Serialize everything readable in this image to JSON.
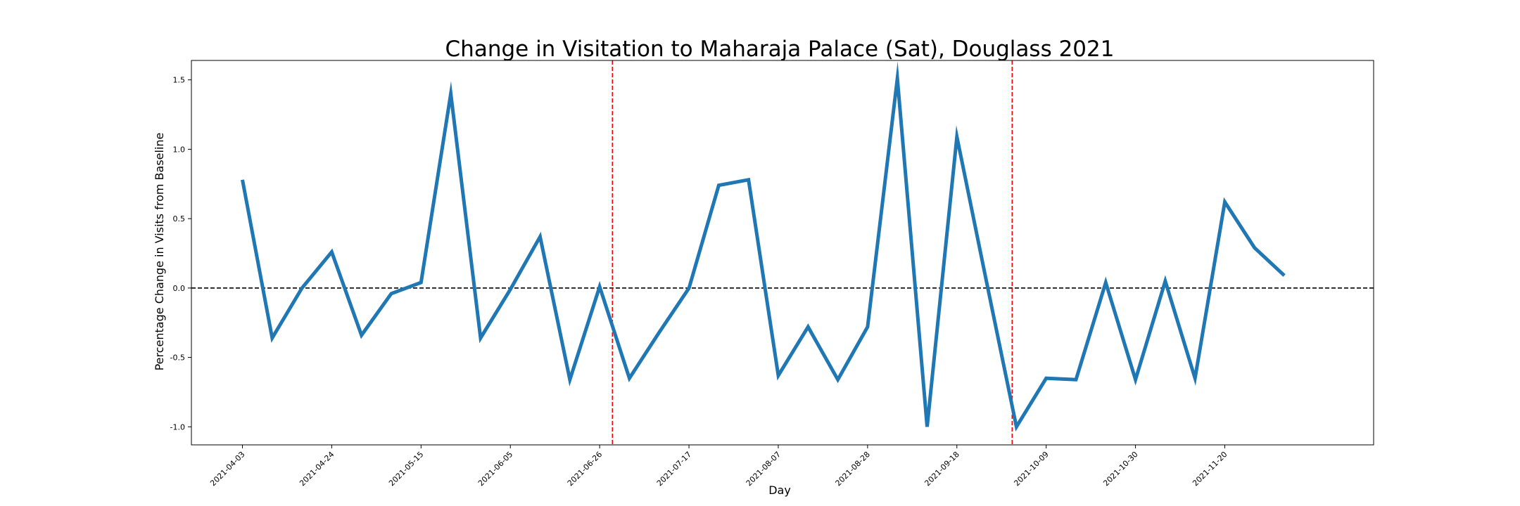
{
  "chart_data": {
    "type": "line",
    "title": "Change in Visitation to Maharaja Palace (Sat), Douglass 2021",
    "xlabel": "Day",
    "ylabel": "Percentage Change in Visits from Baseline",
    "x_tick_labels": [
      "2021-04-03",
      "2021-04-24",
      "2021-05-15",
      "2021-06-05",
      "2021-06-26",
      "2021-07-17",
      "2021-08-07",
      "2021-08-28",
      "2021-09-18",
      "2021-10-09",
      "2021-10-30",
      "2021-11-20"
    ],
    "y_tick_labels": [
      "-1.0",
      "-0.5",
      "0.0",
      "0.5",
      "1.0",
      "1.5"
    ],
    "y_ticks": [
      -1.0,
      -0.5,
      0.0,
      0.5,
      1.0,
      1.5
    ],
    "xlim": [
      "2021-03-22",
      "2021-12-25"
    ],
    "ylim": [
      -1.13,
      1.64
    ],
    "grid": false,
    "baseline": {
      "y": 0,
      "color": "#000000",
      "style": "dashed"
    },
    "vertical_markers": [
      {
        "x": "2021-06-29",
        "color": "#ff0000",
        "style": "dashed"
      },
      {
        "x": "2021-10-01",
        "color": "#ff0000",
        "style": "dashed"
      }
    ],
    "series": [
      {
        "color": "#1f77b4",
        "x": [
          "2021-04-03",
          "2021-04-10",
          "2021-04-17",
          "2021-04-24",
          "2021-05-01",
          "2021-05-08",
          "2021-05-15",
          "2021-05-22",
          "2021-05-29",
          "2021-06-05",
          "2021-06-12",
          "2021-06-19",
          "2021-06-26",
          "2021-07-03",
          "2021-07-10",
          "2021-07-17",
          "2021-07-24",
          "2021-07-31",
          "2021-08-07",
          "2021-08-14",
          "2021-08-21",
          "2021-08-28",
          "2021-09-04",
          "2021-09-11",
          "2021-09-18",
          "2021-09-25",
          "2021-10-02",
          "2021-10-09",
          "2021-10-16",
          "2021-10-23",
          "2021-10-30",
          "2021-11-06",
          "2021-11-13",
          "2021-11-20",
          "2021-11-27",
          "2021-12-04"
        ],
        "values": [
          0.78,
          -0.36,
          0.0,
          0.26,
          -0.34,
          -0.04,
          0.04,
          1.4,
          -0.36,
          -0.01,
          0.37,
          -0.66,
          0.01,
          -0.65,
          -0.32,
          0.0,
          0.74,
          0.78,
          -0.63,
          -0.28,
          -0.66,
          -0.28,
          1.51,
          -1.0,
          1.09,
          0.04,
          -1.0,
          -0.65,
          -0.66,
          0.04,
          -0.66,
          0.05,
          -0.65,
          0.62,
          0.29,
          0.09
        ]
      }
    ]
  }
}
